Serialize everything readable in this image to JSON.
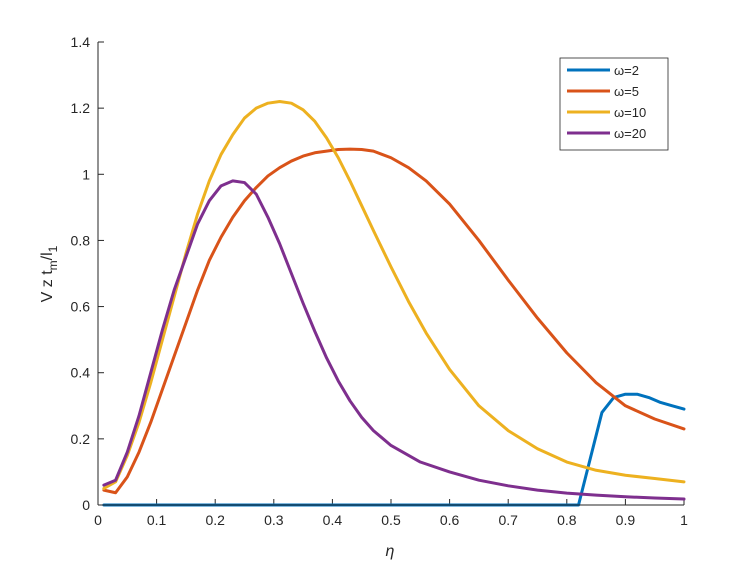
{
  "chart_data": {
    "type": "line",
    "xlabel": "η",
    "ylabel_main": "V z t",
    "ylabel_sub1": "m",
    "ylabel_mid": "/l",
    "ylabel_sub2": "1",
    "xlim": [
      0,
      1
    ],
    "ylim": [
      0,
      1.4
    ],
    "xticks": [
      "0",
      "0.1",
      "0.2",
      "0.3",
      "0.4",
      "0.5",
      "0.6",
      "0.7",
      "0.8",
      "0.9",
      "1"
    ],
    "yticks": [
      "0",
      "0.2",
      "0.4",
      "0.6",
      "0.8",
      "1",
      "1.2",
      "1.4"
    ],
    "legend_position": "top-right",
    "series": [
      {
        "name": "ω=2",
        "color": "#0072BD",
        "points": [
          [
            0.01,
            0
          ],
          [
            0.1,
            0
          ],
          [
            0.2,
            0
          ],
          [
            0.3,
            0
          ],
          [
            0.4,
            0
          ],
          [
            0.5,
            0
          ],
          [
            0.6,
            0
          ],
          [
            0.7,
            0
          ],
          [
            0.8,
            0
          ],
          [
            0.82,
            0
          ],
          [
            0.86,
            0.28
          ],
          [
            0.88,
            0.325
          ],
          [
            0.9,
            0.335
          ],
          [
            0.92,
            0.335
          ],
          [
            0.94,
            0.325
          ],
          [
            0.96,
            0.31
          ],
          [
            0.98,
            0.3
          ],
          [
            1.0,
            0.29
          ]
        ]
      },
      {
        "name": "ω=5",
        "color": "#D95319",
        "points": [
          [
            0.01,
            0.045
          ],
          [
            0.03,
            0.037
          ],
          [
            0.05,
            0.085
          ],
          [
            0.07,
            0.16
          ],
          [
            0.09,
            0.25
          ],
          [
            0.11,
            0.35
          ],
          [
            0.13,
            0.45
          ],
          [
            0.15,
            0.55
          ],
          [
            0.17,
            0.65
          ],
          [
            0.19,
            0.74
          ],
          [
            0.21,
            0.81
          ],
          [
            0.23,
            0.87
          ],
          [
            0.25,
            0.92
          ],
          [
            0.27,
            0.96
          ],
          [
            0.29,
            0.995
          ],
          [
            0.31,
            1.02
          ],
          [
            0.33,
            1.04
          ],
          [
            0.35,
            1.055
          ],
          [
            0.37,
            1.065
          ],
          [
            0.39,
            1.07
          ],
          [
            0.41,
            1.075
          ],
          [
            0.43,
            1.076
          ],
          [
            0.45,
            1.075
          ],
          [
            0.47,
            1.07
          ],
          [
            0.5,
            1.05
          ],
          [
            0.53,
            1.02
          ],
          [
            0.56,
            0.98
          ],
          [
            0.6,
            0.91
          ],
          [
            0.65,
            0.8
          ],
          [
            0.7,
            0.68
          ],
          [
            0.75,
            0.565
          ],
          [
            0.8,
            0.46
          ],
          [
            0.85,
            0.37
          ],
          [
            0.9,
            0.3
          ],
          [
            0.95,
            0.26
          ],
          [
            1.0,
            0.23
          ]
        ]
      },
      {
        "name": "ω=10",
        "color": "#EDB120",
        "points": [
          [
            0.01,
            0.05
          ],
          [
            0.03,
            0.07
          ],
          [
            0.05,
            0.15
          ],
          [
            0.07,
            0.25
          ],
          [
            0.09,
            0.37
          ],
          [
            0.11,
            0.5
          ],
          [
            0.13,
            0.63
          ],
          [
            0.15,
            0.76
          ],
          [
            0.17,
            0.88
          ],
          [
            0.19,
            0.98
          ],
          [
            0.21,
            1.06
          ],
          [
            0.23,
            1.12
          ],
          [
            0.25,
            1.17
          ],
          [
            0.27,
            1.2
          ],
          [
            0.29,
            1.215
          ],
          [
            0.31,
            1.22
          ],
          [
            0.33,
            1.215
          ],
          [
            0.35,
            1.195
          ],
          [
            0.37,
            1.16
          ],
          [
            0.39,
            1.11
          ],
          [
            0.41,
            1.05
          ],
          [
            0.43,
            0.98
          ],
          [
            0.45,
            0.905
          ],
          [
            0.47,
            0.83
          ],
          [
            0.5,
            0.72
          ],
          [
            0.53,
            0.615
          ],
          [
            0.56,
            0.52
          ],
          [
            0.6,
            0.41
          ],
          [
            0.65,
            0.3
          ],
          [
            0.7,
            0.225
          ],
          [
            0.75,
            0.17
          ],
          [
            0.8,
            0.13
          ],
          [
            0.85,
            0.105
          ],
          [
            0.9,
            0.09
          ],
          [
            0.95,
            0.08
          ],
          [
            1.0,
            0.07
          ]
        ]
      },
      {
        "name": "ω=20",
        "color": "#7E2F8E",
        "points": [
          [
            0.01,
            0.06
          ],
          [
            0.03,
            0.075
          ],
          [
            0.05,
            0.16
          ],
          [
            0.07,
            0.27
          ],
          [
            0.09,
            0.4
          ],
          [
            0.11,
            0.53
          ],
          [
            0.13,
            0.65
          ],
          [
            0.15,
            0.75
          ],
          [
            0.17,
            0.85
          ],
          [
            0.19,
            0.92
          ],
          [
            0.21,
            0.965
          ],
          [
            0.23,
            0.98
          ],
          [
            0.25,
            0.975
          ],
          [
            0.27,
            0.94
          ],
          [
            0.29,
            0.87
          ],
          [
            0.31,
            0.79
          ],
          [
            0.33,
            0.7
          ],
          [
            0.35,
            0.61
          ],
          [
            0.37,
            0.525
          ],
          [
            0.39,
            0.445
          ],
          [
            0.41,
            0.375
          ],
          [
            0.43,
            0.315
          ],
          [
            0.45,
            0.265
          ],
          [
            0.47,
            0.225
          ],
          [
            0.5,
            0.18
          ],
          [
            0.55,
            0.13
          ],
          [
            0.6,
            0.1
          ],
          [
            0.65,
            0.075
          ],
          [
            0.7,
            0.058
          ],
          [
            0.75,
            0.045
          ],
          [
            0.8,
            0.036
          ],
          [
            0.85,
            0.03
          ],
          [
            0.9,
            0.025
          ],
          [
            0.95,
            0.021
          ],
          [
            1.0,
            0.018
          ]
        ]
      }
    ]
  }
}
